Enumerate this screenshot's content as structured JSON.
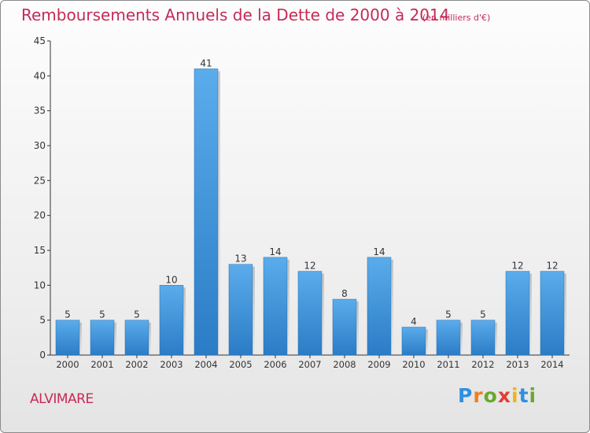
{
  "chart_data": {
    "type": "bar",
    "title": "Remboursements Annuels de la Dette de 2000 à 2014",
    "subtitle": "(en milliers d'€)",
    "categories": [
      "2000",
      "2001",
      "2002",
      "2003",
      "2004",
      "2005",
      "2006",
      "2007",
      "2008",
      "2009",
      "2010",
      "2011",
      "2012",
      "2013",
      "2014"
    ],
    "values": [
      5,
      5,
      5,
      10,
      41,
      13,
      14,
      12,
      8,
      14,
      4,
      5,
      5,
      12,
      12
    ],
    "ylim": [
      0,
      45
    ],
    "yticks": [
      0,
      5,
      10,
      15,
      20,
      25,
      30,
      35,
      40,
      45
    ],
    "grid": false,
    "bar_color": "#3d8fd6"
  },
  "footer": {
    "commune": "ALVIMARE",
    "logo_letters": [
      "P",
      "r",
      "o",
      "x",
      "i",
      "t",
      "i"
    ],
    "logo_colors": [
      "#2f8fe0",
      "#f07f1c",
      "#6aa830",
      "#e23e35",
      "#f0b21c",
      "#2f8fe0",
      "#6aa830"
    ]
  }
}
